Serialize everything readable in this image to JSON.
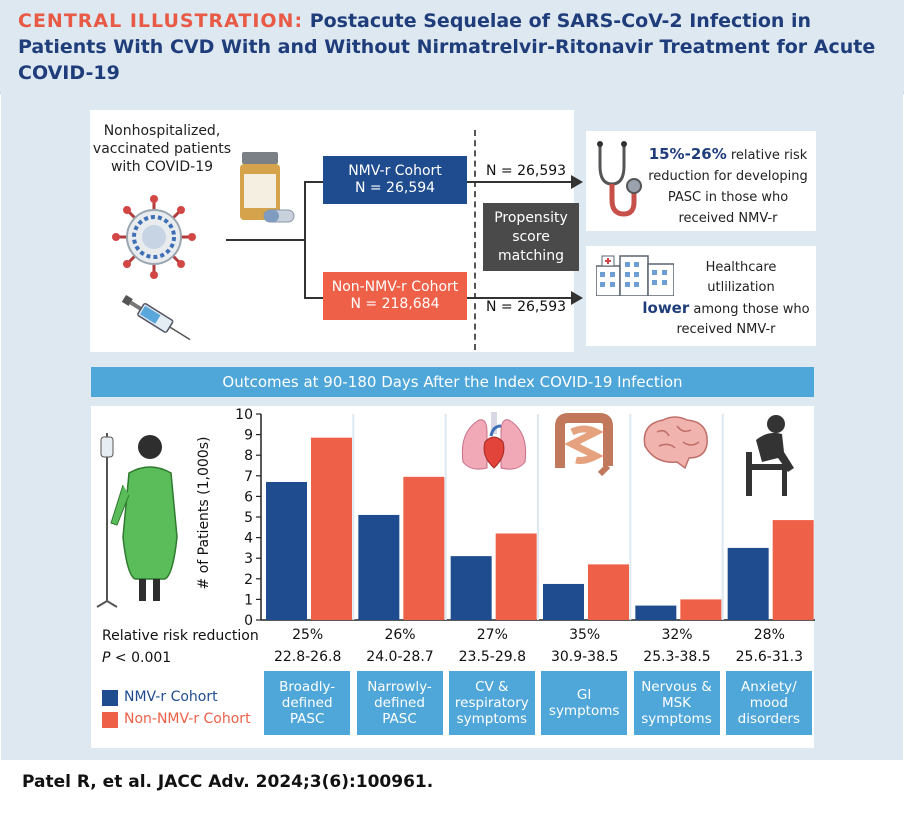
{
  "header": {
    "kicker": "CENTRAL ILLUSTRATION:",
    "title": "Postacute Sequelae of SARS-CoV-2 Infection in Patients With CVD With and Without Nirmatrelvir-Ritonavir Treatment for Acute COVID-19"
  },
  "study": {
    "population": "Nonhospitalized, vaccinated patients with COVID-19",
    "nmv_cohort_label": "NMV-r Cohort",
    "nmv_cohort_n": "N = 26,594",
    "non_cohort_label": "Non-NMV-r Cohort",
    "non_cohort_n": "N = 218,684",
    "matched_n_top": "N = 26,593",
    "matched_n_bottom": "N = 26,593",
    "psm": "Propensity score matching"
  },
  "findings": {
    "risk_highlight": "15%-26%",
    "risk_rest": "relative risk reduction for developing PASC in those who received NMV-r",
    "util_line1": "Healthcare utlilization",
    "util_lower": "lower",
    "util_line2": "among those who received NMV-r"
  },
  "outcomes_title": "Outcomes at 90-180 Days After the Index COVID-19 Infection",
  "rrr": {
    "label": "Relative risk reduction",
    "p_italic": "P",
    "p_rest": "< 0.001"
  },
  "legend": {
    "nmv": "NMV-r Cohort",
    "non": "Non-NMV-r Cohort"
  },
  "colors": {
    "nmv": "#1f4c8f",
    "non": "#ee6047",
    "accent_blue": "#4fa6d8",
    "title_blue": "#1f3d7a"
  },
  "icons": [
    "pill-bottle-icon",
    "virus-icon",
    "syringe-icon",
    "stethoscope-icon",
    "hospital-icon",
    "iv-patient-icon",
    "heart-lungs-icon",
    "intestines-icon",
    "brain-icon",
    "sad-person-icon"
  ],
  "chart_data": {
    "type": "bar",
    "ylabel": "# of Patients (1,000s)",
    "ylim": [
      0,
      10
    ],
    "yticks": [
      0,
      1,
      2,
      3,
      4,
      5,
      6,
      7,
      8,
      9,
      10
    ],
    "categories": [
      "Broadly-defined PASC",
      "Narrowly-defined PASC",
      "CV & respiratory symptoms",
      "GI symptoms",
      "Nervous & MSK symptoms",
      "Anxiety/ mood disorders"
    ],
    "series": [
      {
        "name": "NMV-r Cohort",
        "values": [
          6.7,
          5.1,
          3.1,
          1.75,
          0.7,
          3.5
        ]
      },
      {
        "name": "Non-NMV-r Cohort",
        "values": [
          8.85,
          6.95,
          4.2,
          2.7,
          1.0,
          4.85
        ]
      }
    ],
    "rrr_percent": [
      "25%",
      "26%",
      "27%",
      "35%",
      "32%",
      "28%"
    ],
    "rrr_ci": [
      "22.8-26.8",
      "24.0-28.7",
      "23.5-29.8",
      "30.9-38.5",
      "25.3-38.5",
      "25.6-31.3"
    ]
  },
  "citation": "Patel R, et al. JACC Adv. 2024;3(6):100961."
}
